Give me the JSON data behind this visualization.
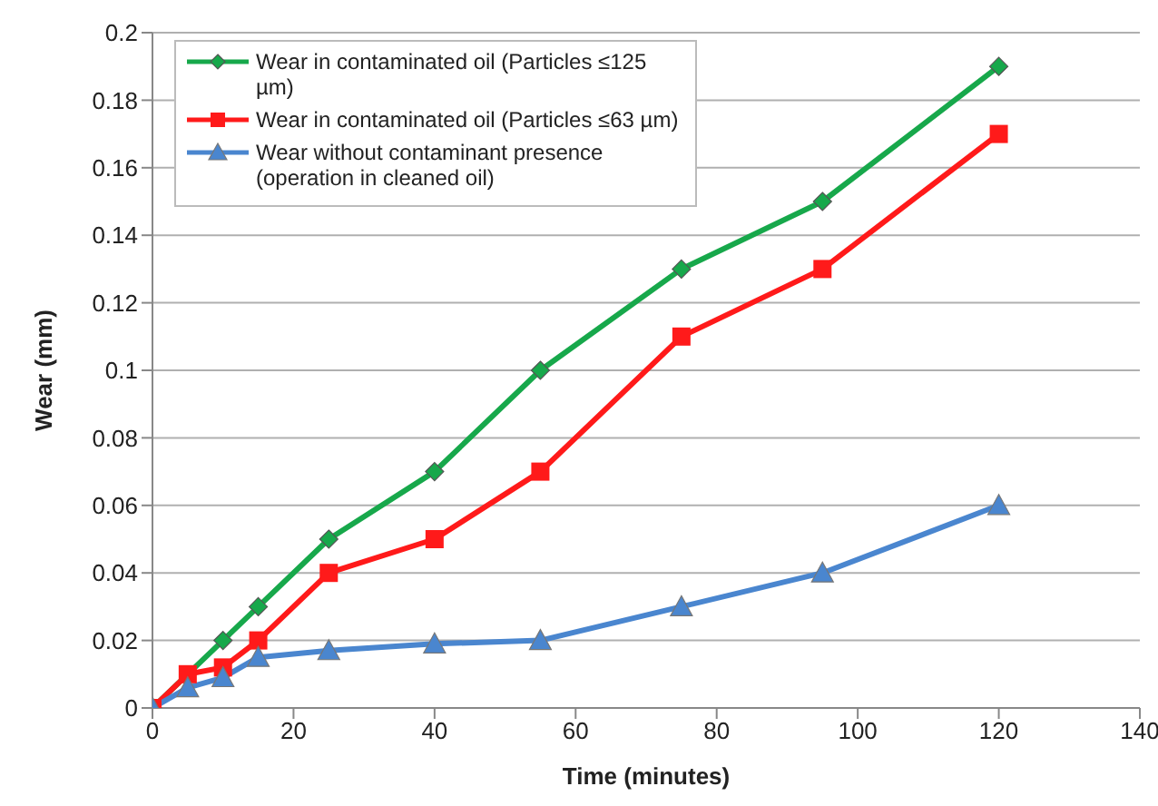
{
  "chart_data": {
    "type": "line",
    "xlabel": "Time (minutes)",
    "ylabel": "Wear (mm)",
    "xlim": [
      0,
      140
    ],
    "xticks": [
      0,
      20,
      40,
      60,
      80,
      100,
      120,
      140
    ],
    "ylim": [
      0,
      0.2
    ],
    "yticks": [
      0,
      0.02,
      0.04,
      0.06,
      0.08,
      0.1,
      0.12,
      0.14,
      0.16,
      0.18,
      0.2
    ],
    "grid": "y",
    "legend": "top left",
    "series": [
      {
        "name": "Wear in contaminated oil (Particles ≤125 µm)",
        "color": "#17a84b",
        "marker": "diamond",
        "x": [
          0,
          10,
          15,
          25,
          40,
          55,
          75,
          95,
          120
        ],
        "values": [
          0,
          0.02,
          0.03,
          0.05,
          0.07,
          0.1,
          0.13,
          0.15,
          0.19
        ]
      },
      {
        "name": "Wear in contaminated oil (Particles ≤63 µm)",
        "color": "#ff1a1a",
        "marker": "square",
        "x": [
          0,
          5,
          10,
          15,
          25,
          40,
          55,
          75,
          95,
          120
        ],
        "values": [
          0,
          0.01,
          0.012,
          0.02,
          0.04,
          0.05,
          0.07,
          0.11,
          0.13,
          0.17
        ]
      },
      {
        "name": "Wear without contaminant presence (operation in cleaned oil)",
        "color": "#4a86cf",
        "marker": "triangle",
        "x": [
          0,
          5,
          10,
          15,
          25,
          40,
          55,
          75,
          95,
          120
        ],
        "values": [
          0,
          0.006,
          0.009,
          0.015,
          0.017,
          0.019,
          0.02,
          0.03,
          0.04,
          0.06
        ]
      }
    ]
  }
}
